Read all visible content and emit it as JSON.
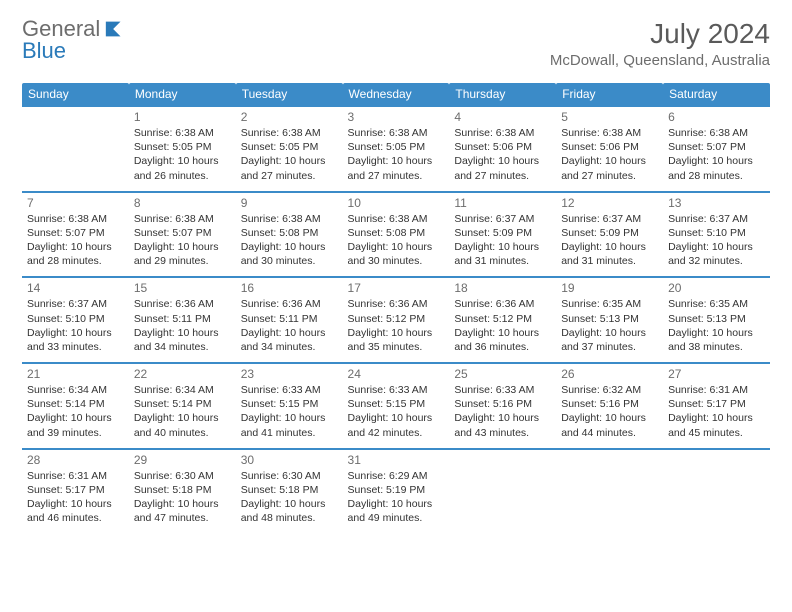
{
  "logo": {
    "text1": "General",
    "text2": "Blue"
  },
  "title": "July 2024",
  "location": "McDowall, Queensland, Australia",
  "dow": [
    "Sunday",
    "Monday",
    "Tuesday",
    "Wednesday",
    "Thursday",
    "Friday",
    "Saturday"
  ],
  "colors": {
    "header_bg": "#3b8bc8",
    "header_fg": "#ffffff",
    "border": "#3b8bc8",
    "logo_gray": "#6d6d6d",
    "logo_blue": "#2a7ab9",
    "text": "#333333"
  },
  "weeks": [
    [
      null,
      {
        "n": "1",
        "sr": "6:38 AM",
        "ss": "5:05 PM",
        "dl": "10 hours and 26 minutes."
      },
      {
        "n": "2",
        "sr": "6:38 AM",
        "ss": "5:05 PM",
        "dl": "10 hours and 27 minutes."
      },
      {
        "n": "3",
        "sr": "6:38 AM",
        "ss": "5:05 PM",
        "dl": "10 hours and 27 minutes."
      },
      {
        "n": "4",
        "sr": "6:38 AM",
        "ss": "5:06 PM",
        "dl": "10 hours and 27 minutes."
      },
      {
        "n": "5",
        "sr": "6:38 AM",
        "ss": "5:06 PM",
        "dl": "10 hours and 27 minutes."
      },
      {
        "n": "6",
        "sr": "6:38 AM",
        "ss": "5:07 PM",
        "dl": "10 hours and 28 minutes."
      }
    ],
    [
      {
        "n": "7",
        "sr": "6:38 AM",
        "ss": "5:07 PM",
        "dl": "10 hours and 28 minutes."
      },
      {
        "n": "8",
        "sr": "6:38 AM",
        "ss": "5:07 PM",
        "dl": "10 hours and 29 minutes."
      },
      {
        "n": "9",
        "sr": "6:38 AM",
        "ss": "5:08 PM",
        "dl": "10 hours and 30 minutes."
      },
      {
        "n": "10",
        "sr": "6:38 AM",
        "ss": "5:08 PM",
        "dl": "10 hours and 30 minutes."
      },
      {
        "n": "11",
        "sr": "6:37 AM",
        "ss": "5:09 PM",
        "dl": "10 hours and 31 minutes."
      },
      {
        "n": "12",
        "sr": "6:37 AM",
        "ss": "5:09 PM",
        "dl": "10 hours and 31 minutes."
      },
      {
        "n": "13",
        "sr": "6:37 AM",
        "ss": "5:10 PM",
        "dl": "10 hours and 32 minutes."
      }
    ],
    [
      {
        "n": "14",
        "sr": "6:37 AM",
        "ss": "5:10 PM",
        "dl": "10 hours and 33 minutes."
      },
      {
        "n": "15",
        "sr": "6:36 AM",
        "ss": "5:11 PM",
        "dl": "10 hours and 34 minutes."
      },
      {
        "n": "16",
        "sr": "6:36 AM",
        "ss": "5:11 PM",
        "dl": "10 hours and 34 minutes."
      },
      {
        "n": "17",
        "sr": "6:36 AM",
        "ss": "5:12 PM",
        "dl": "10 hours and 35 minutes."
      },
      {
        "n": "18",
        "sr": "6:36 AM",
        "ss": "5:12 PM",
        "dl": "10 hours and 36 minutes."
      },
      {
        "n": "19",
        "sr": "6:35 AM",
        "ss": "5:13 PM",
        "dl": "10 hours and 37 minutes."
      },
      {
        "n": "20",
        "sr": "6:35 AM",
        "ss": "5:13 PM",
        "dl": "10 hours and 38 minutes."
      }
    ],
    [
      {
        "n": "21",
        "sr": "6:34 AM",
        "ss": "5:14 PM",
        "dl": "10 hours and 39 minutes."
      },
      {
        "n": "22",
        "sr": "6:34 AM",
        "ss": "5:14 PM",
        "dl": "10 hours and 40 minutes."
      },
      {
        "n": "23",
        "sr": "6:33 AM",
        "ss": "5:15 PM",
        "dl": "10 hours and 41 minutes."
      },
      {
        "n": "24",
        "sr": "6:33 AM",
        "ss": "5:15 PM",
        "dl": "10 hours and 42 minutes."
      },
      {
        "n": "25",
        "sr": "6:33 AM",
        "ss": "5:16 PM",
        "dl": "10 hours and 43 minutes."
      },
      {
        "n": "26",
        "sr": "6:32 AM",
        "ss": "5:16 PM",
        "dl": "10 hours and 44 minutes."
      },
      {
        "n": "27",
        "sr": "6:31 AM",
        "ss": "5:17 PM",
        "dl": "10 hours and 45 minutes."
      }
    ],
    [
      {
        "n": "28",
        "sr": "6:31 AM",
        "ss": "5:17 PM",
        "dl": "10 hours and 46 minutes."
      },
      {
        "n": "29",
        "sr": "6:30 AM",
        "ss": "5:18 PM",
        "dl": "10 hours and 47 minutes."
      },
      {
        "n": "30",
        "sr": "6:30 AM",
        "ss": "5:18 PM",
        "dl": "10 hours and 48 minutes."
      },
      {
        "n": "31",
        "sr": "6:29 AM",
        "ss": "5:19 PM",
        "dl": "10 hours and 49 minutes."
      },
      null,
      null,
      null
    ]
  ],
  "labels": {
    "sunrise": "Sunrise:",
    "sunset": "Sunset:",
    "daylight": "Daylight:"
  }
}
